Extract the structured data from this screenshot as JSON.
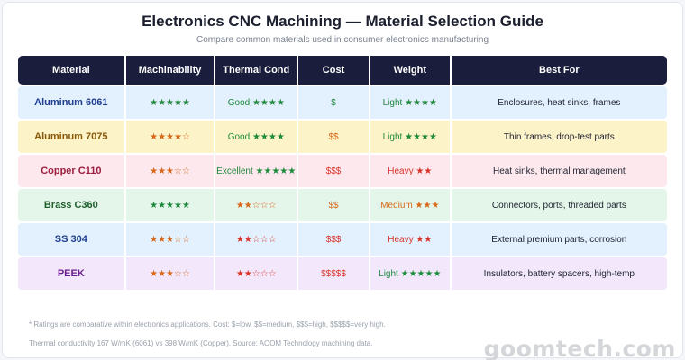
{
  "header": {
    "title": "Electronics CNC Machining — Material Selection Guide",
    "subtitle": "Compare common materials used in consumer electronics manufacturing"
  },
  "table": {
    "columns": [
      "Material",
      "Machinability",
      "Thermal Cond",
      "Cost",
      "Weight",
      "Best For"
    ],
    "rows": [
      {
        "material": "Aluminum 6061",
        "machinability": "★★★★★",
        "thermal": "Good ★★★★",
        "cost": "$",
        "weight": "Light ★★★★",
        "best_for": "Enclosures, heat sinks, frames",
        "colors": {
          "bg": "#e3f0fd",
          "name": "#1f3f8f",
          "mach": "#1e8a3c",
          "thermal": "#1e8a3c",
          "cost": "#1e8a3c",
          "weight": "#1e8a3c"
        }
      },
      {
        "material": "Aluminum 7075",
        "machinability": "★★★★☆",
        "thermal": "Good ★★★★",
        "cost": "$$",
        "weight": "Light ★★★★",
        "best_for": "Thin frames, drop-test parts",
        "colors": {
          "bg": "#fdf3c9",
          "name": "#8a5a0a",
          "mach": "#d7681a",
          "thermal": "#1e8a3c",
          "cost": "#d7681a",
          "weight": "#1e8a3c"
        }
      },
      {
        "material": "Copper C110",
        "machinability": "★★★☆☆",
        "thermal": "Excellent ★★★★★",
        "cost": "$$$",
        "weight": "Heavy ★★",
        "best_for": "Heat sinks, thermal management",
        "colors": {
          "bg": "#fde8ee",
          "name": "#9b1c3c",
          "mach": "#d7681a",
          "thermal": "#1e8a3c",
          "cost": "#d8352a",
          "weight": "#d8352a"
        }
      },
      {
        "material": "Brass C360",
        "machinability": "★★★★★",
        "thermal": "★★☆☆☆",
        "cost": "$$",
        "weight": "Medium ★★★",
        "best_for": "Connectors, ports, threaded parts",
        "colors": {
          "bg": "#e4f6e9",
          "name": "#1d5e2b",
          "mach": "#1e8a3c",
          "thermal": "#d7681a",
          "cost": "#d7681a",
          "weight": "#d7681a"
        }
      },
      {
        "material": "SS 304",
        "machinability": "★★★☆☆",
        "thermal": "★★☆☆☆",
        "cost": "$$$",
        "weight": "Heavy ★★",
        "best_for": "External premium parts, corrosion",
        "colors": {
          "bg": "#e3f0fd",
          "name": "#1f3f8f",
          "mach": "#d7681a",
          "thermal": "#d8352a",
          "cost": "#d8352a",
          "weight": "#d8352a"
        }
      },
      {
        "material": "PEEK",
        "machinability": "★★★☆☆",
        "thermal": "★★☆☆☆",
        "cost": "$$$$$",
        "weight": "Light ★★★★★",
        "best_for": "Insulators, battery spacers, high-temp",
        "colors": {
          "bg": "#f3e7fb",
          "name": "#6a1f8f",
          "mach": "#d7681a",
          "thermal": "#d8352a",
          "cost": "#d8352a",
          "weight": "#1e8a3c"
        }
      }
    ]
  },
  "footer": {
    "note1": "* Ratings are comparative within electronics applications. Cost: $=low, $$=medium, $$$=high, $$$$$=very high.",
    "note2": "Thermal conductivity 167 W/mK (6061) vs 398 W/mK (Copper). Source: AOOM Technology machining data.",
    "brand": "goomtech.com"
  }
}
